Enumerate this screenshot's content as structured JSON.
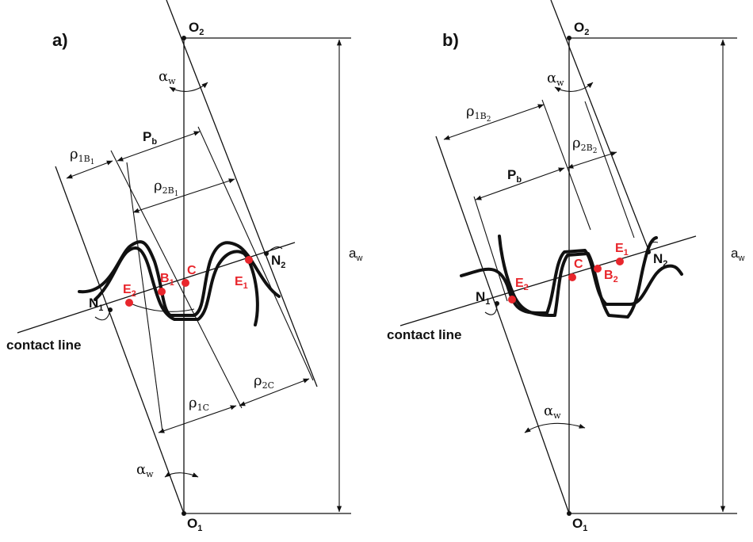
{
  "panels": {
    "a": {
      "title": "a)",
      "O2": "O",
      "O2_sub": "2",
      "O1": "O",
      "O1_sub": "1",
      "alpha_top": "α",
      "alpha_top_sub": "w",
      "alpha_bottom": "α",
      "alpha_bottom_sub": "w",
      "pb": "P",
      "pb_sub": "b",
      "rho1b": "ρ",
      "rho1b_sub": "1B",
      "rho1b_subsub": "1",
      "rho2b": "ρ",
      "rho2b_sub": "2B",
      "rho2b_subsub": "1",
      "rho1c": "ρ",
      "rho1c_sub": "1C",
      "rho2c": "ρ",
      "rho2c_sub": "2C",
      "aw": "a",
      "aw_sub": "w",
      "N1": "N",
      "N1_sub": "1",
      "N2": "N",
      "N2_sub": "2",
      "E1": "E",
      "E1_sub": "1",
      "E2": "E",
      "E2_sub": "2",
      "B1": "B",
      "B1_sub": "1",
      "C": "C",
      "contact_line": "contact line"
    },
    "b": {
      "title": "b)",
      "O2": "O",
      "O2_sub": "2",
      "O1": "O",
      "O1_sub": "1",
      "alpha_top": "α",
      "alpha_top_sub": "w",
      "alpha_bottom": "α",
      "alpha_bottom_sub": "w",
      "pb": "P",
      "pb_sub": "b",
      "rho1b": "ρ",
      "rho1b_sub": "1B",
      "rho1b_subsub": "2",
      "rho2b": "ρ",
      "rho2b_sub": "2B",
      "rho2b_subsub": "2",
      "aw": "a",
      "aw_sub": "w",
      "N1": "N",
      "N1_sub": "1",
      "N2": "N",
      "N2_sub": "2",
      "E1": "E",
      "E1_sub": "1",
      "E2": "E",
      "E2_sub": "2",
      "B2": "B",
      "B2_sub": "2",
      "C": "C",
      "contact_line": "contact line"
    }
  },
  "colors": {
    "highlight": "#e8262c",
    "ink": "#111111"
  }
}
